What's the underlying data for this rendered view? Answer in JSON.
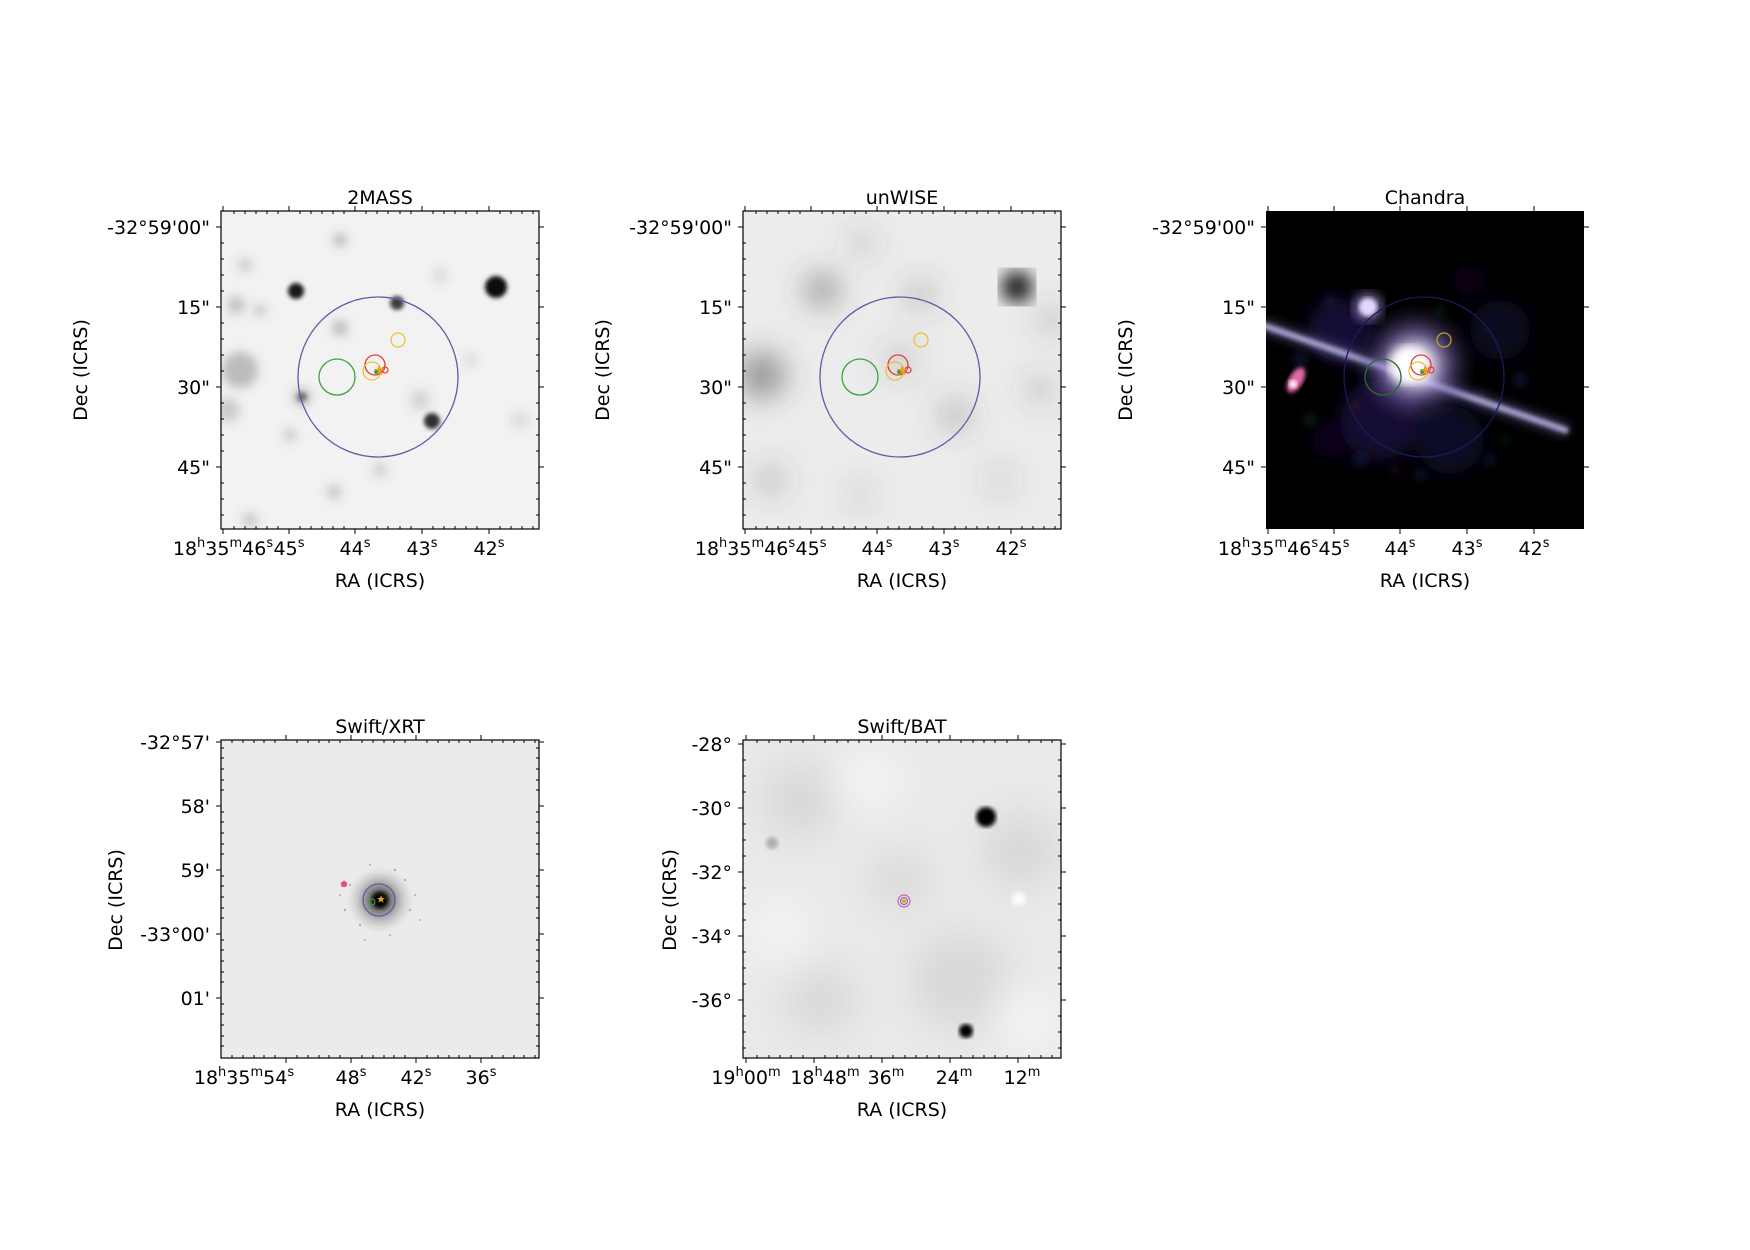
{
  "figure": {
    "chart_data": [
      {
        "type": "image",
        "title": "2MASS",
        "xlabel": "RA (ICRS)",
        "ylabel": "Dec (ICRS)",
        "yticks": [
          "-32°59'00\"",
          "15\"",
          "30\"",
          "45\""
        ],
        "xticks": [
          [
            "18",
            "h",
            "35",
            "m",
            "46",
            "s"
          ],
          [
            "45",
            "s"
          ],
          [
            "44",
            "s"
          ],
          [
            "43",
            "s"
          ],
          [
            "42",
            "s"
          ]
        ],
        "colormap": "gray_r",
        "regions": [
          {
            "color": "#5b5ba8",
            "label": "large error circle"
          },
          {
            "color": "#3fa03f",
            "label": "green circle"
          },
          {
            "color": "#e03a3a",
            "label": "red circle"
          },
          {
            "color": "#e8c22a",
            "label": "yellow circles"
          },
          {
            "color": "#e8a020",
            "label": "star marker"
          }
        ]
      },
      {
        "type": "image",
        "title": "unWISE",
        "xlabel": "RA (ICRS)",
        "ylabel": "Dec (ICRS)",
        "yticks": [
          "-32°59'00\"",
          "15\"",
          "30\"",
          "45\""
        ],
        "xticks": [
          [
            "18",
            "h",
            "35",
            "m",
            "46",
            "s"
          ],
          [
            "45",
            "s"
          ],
          [
            "44",
            "s"
          ],
          [
            "43",
            "s"
          ],
          [
            "42",
            "s"
          ]
        ],
        "colormap": "gray_r"
      },
      {
        "type": "image",
        "title": "Chandra",
        "xlabel": "RA (ICRS)",
        "ylabel": "Dec (ICRS)",
        "yticks": [
          "-32°59'00\"",
          "15\"",
          "30\"",
          "45\""
        ],
        "xticks": [
          [
            "18",
            "h",
            "35",
            "m",
            "46",
            "s"
          ],
          [
            "45",
            "s"
          ],
          [
            "44",
            "s"
          ],
          [
            "43",
            "s"
          ],
          [
            "42",
            "s"
          ]
        ],
        "colormap": "rgb composite"
      },
      {
        "type": "image",
        "title": "Swift/XRT",
        "xlabel": "RA (ICRS)",
        "ylabel": "Dec (ICRS)",
        "yticks": [
          "-32°57'",
          "58'",
          "59'",
          "-33°00'",
          "01'"
        ],
        "xticks": [
          [
            "18",
            "h",
            "35",
            "m",
            "54",
            "s"
          ],
          [
            "48",
            "s"
          ],
          [
            "42",
            "s"
          ],
          [
            "36",
            "s"
          ]
        ],
        "colormap": "gray_r"
      },
      {
        "type": "image",
        "title": "Swift/BAT",
        "xlabel": "RA (ICRS)",
        "ylabel": "Dec (ICRS)",
        "yticks": [
          "-28°",
          "-30°",
          "-32°",
          "-34°",
          "-36°"
        ],
        "xticks": [
          [
            "19",
            "h",
            "00",
            "m"
          ],
          [
            "18",
            "h",
            "48",
            "m"
          ],
          [
            "36",
            "m"
          ],
          [
            "24",
            "m"
          ],
          [
            "12",
            "m"
          ]
        ],
        "colormap": "gray_r"
      }
    ]
  }
}
